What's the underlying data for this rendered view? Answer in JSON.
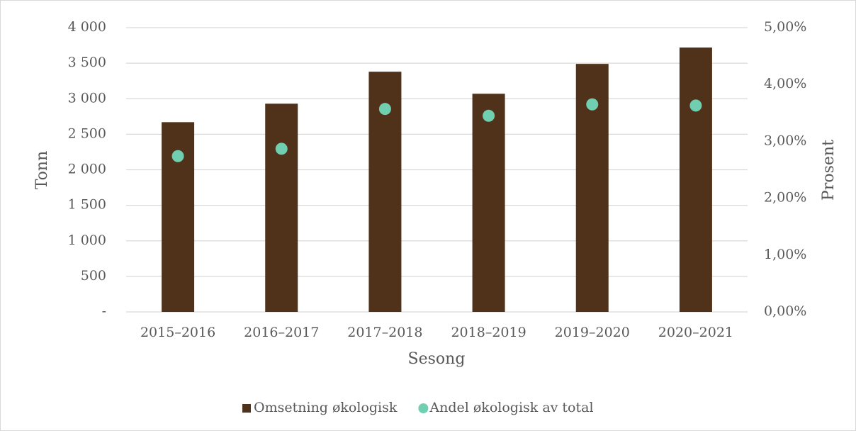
{
  "chart_data": {
    "type": "bar",
    "categories": [
      "2015–2016",
      "2016–2017",
      "2017–2018",
      "2018–2019",
      "2019–2020",
      "2020–2021"
    ],
    "series": [
      {
        "name": "Omsetning økologisk",
        "type": "bar",
        "color": "#4f3219",
        "values": [
          2670,
          2930,
          3380,
          3070,
          3490,
          3720
        ]
      },
      {
        "name": "Andel økologisk av total",
        "type": "scatter",
        "axis": "y2",
        "color": "#6fcfb0",
        "values": [
          2.74,
          2.87,
          3.57,
          3.45,
          3.65,
          3.63
        ]
      }
    ],
    "x_label": "Sesong",
    "y_label": "Tonn",
    "y2_label": "Prosent",
    "ylim": [
      0,
      4000
    ],
    "yticks": [
      {
        "value": 0,
        "label": "-"
      },
      500,
      {
        "value": 1000,
        "label": "1 000"
      },
      {
        "value": 1500,
        "label": "1 500"
      },
      {
        "value": 2000,
        "label": "2 000"
      },
      {
        "value": 2500,
        "label": "2 500"
      },
      {
        "value": 3000,
        "label": "3 000"
      },
      {
        "value": 3500,
        "label": "3 500"
      },
      {
        "value": 4000,
        "label": "4 000"
      }
    ],
    "y2lim": [
      0,
      5
    ],
    "y2ticks": [
      {
        "value": 0,
        "label": "0,00%"
      },
      {
        "value": 1,
        "label": "1,00%"
      },
      {
        "value": 2,
        "label": "2,00%"
      },
      {
        "value": 3,
        "label": "3,00%"
      },
      {
        "value": 4,
        "label": "4,00%"
      },
      {
        "value": 5,
        "label": "5,00%"
      }
    ],
    "grid": true,
    "legend": "bottom"
  }
}
